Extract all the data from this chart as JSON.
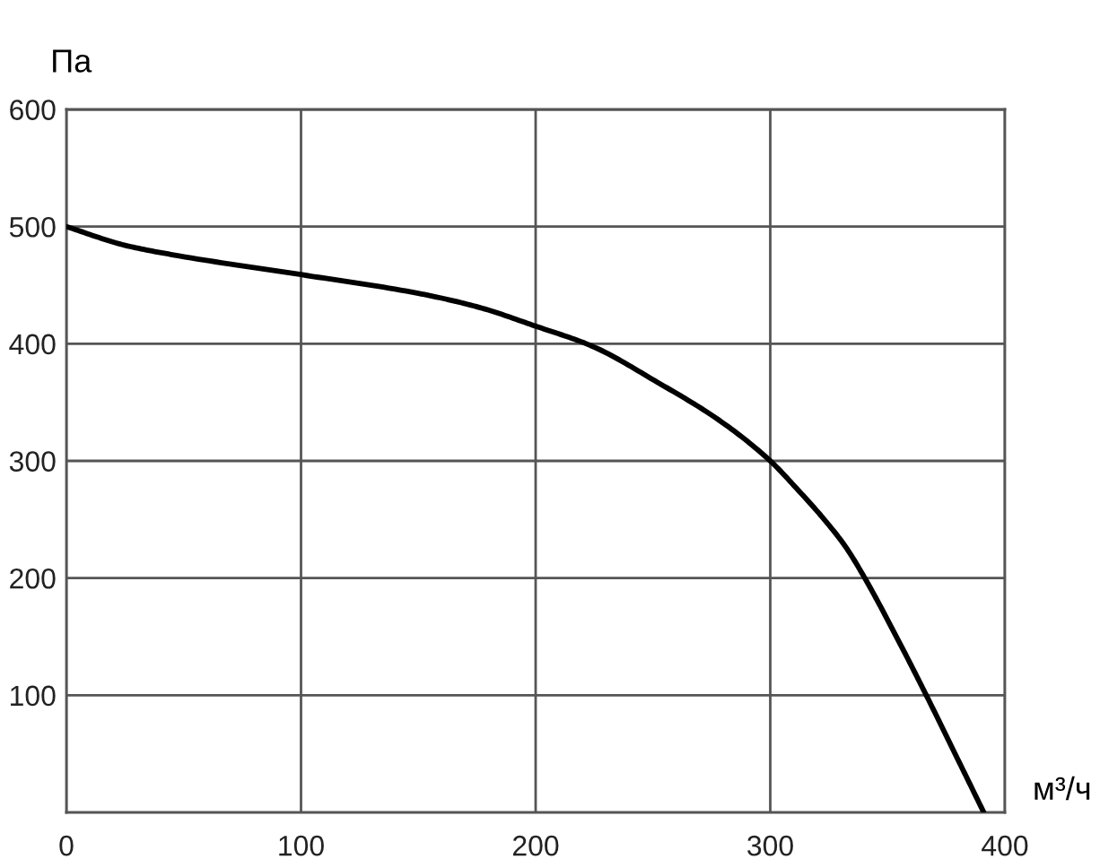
{
  "chart_data": {
    "type": "line",
    "xlabel": "м³/ч",
    "ylabel": "Па",
    "x": [
      0,
      25,
      48,
      100,
      150,
      176,
      200,
      224,
      252,
      278,
      300,
      311,
      323,
      332,
      340,
      354,
      366,
      380,
      391
    ],
    "series": [
      {
        "color": "#000000",
        "values": [
          500,
          484,
          475,
          459,
          443,
          431,
          415,
          398,
          367,
          335,
          300,
          277,
          250,
          227,
          201,
          149,
          102,
          45,
          0
        ]
      }
    ],
    "xlim": [
      0,
      400
    ],
    "ylim": [
      0,
      600
    ],
    "xticks": [
      0,
      100,
      200,
      300,
      400
    ],
    "yticks": [
      100,
      200,
      300,
      400,
      500,
      600
    ],
    "grid": true,
    "line_style": "solid"
  }
}
